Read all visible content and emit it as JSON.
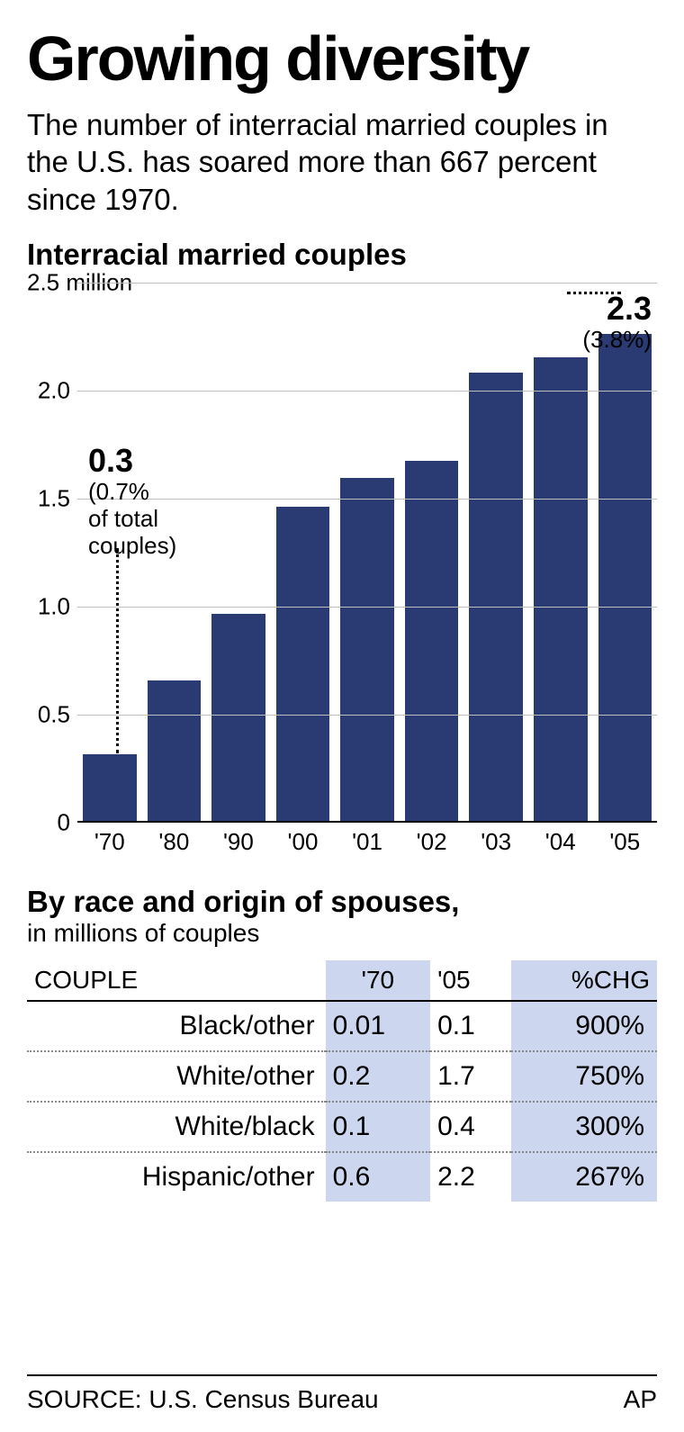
{
  "title": "Growing diversity",
  "subtitle": "The number of interracial married couples in the U.S. has soared more than 667 percent since 1970.",
  "chart": {
    "type": "bar",
    "label": "Interracial married couples",
    "y_unit": "million",
    "ylim": [
      0,
      2.5
    ],
    "ytick_step": 0.5,
    "yticks": [
      "0",
      "0.5",
      "1.0",
      "1.5",
      "2.0",
      "2.5"
    ],
    "categories": [
      "'70",
      "'80",
      "'90",
      "'00",
      "'01",
      "'02",
      "'03",
      "'04",
      "'05"
    ],
    "values": [
      0.31,
      0.65,
      0.96,
      1.46,
      1.59,
      1.67,
      2.08,
      2.15,
      2.26
    ],
    "bar_color": "#2a3a72",
    "grid_color": "#bfbfbf",
    "background_color": "#ffffff",
    "callout_first": {
      "value": "0.3",
      "pct_line1": "(0.7%",
      "pct_line2": "of total",
      "pct_line3": "couples)"
    },
    "callout_last": {
      "value": "2.3",
      "pct": "(3.8%)"
    },
    "title_fontsize": 33,
    "tick_fontsize": 26
  },
  "table": {
    "title": "By race and origin of spouses,",
    "subtitle": "in millions of couples",
    "highlight_color": "#cdd6ef",
    "columns": [
      "COUPLE",
      "'70",
      "'05",
      "%CHG"
    ],
    "rows": [
      {
        "label": "Black/other",
        "y70": "0.01",
        "y05": "0.1",
        "chg": "900%"
      },
      {
        "label": "White/other",
        "y70": "0.2",
        "y05": "1.7",
        "chg": "750%"
      },
      {
        "label": "White/black",
        "y70": "0.1",
        "y05": "0.4",
        "chg": "300%"
      },
      {
        "label": "Hispanic/other",
        "y70": "0.6",
        "y05": "2.2",
        "chg": "267%"
      }
    ]
  },
  "source": {
    "label": "SOURCE: U.S. Census Bureau",
    "credit": "AP"
  }
}
